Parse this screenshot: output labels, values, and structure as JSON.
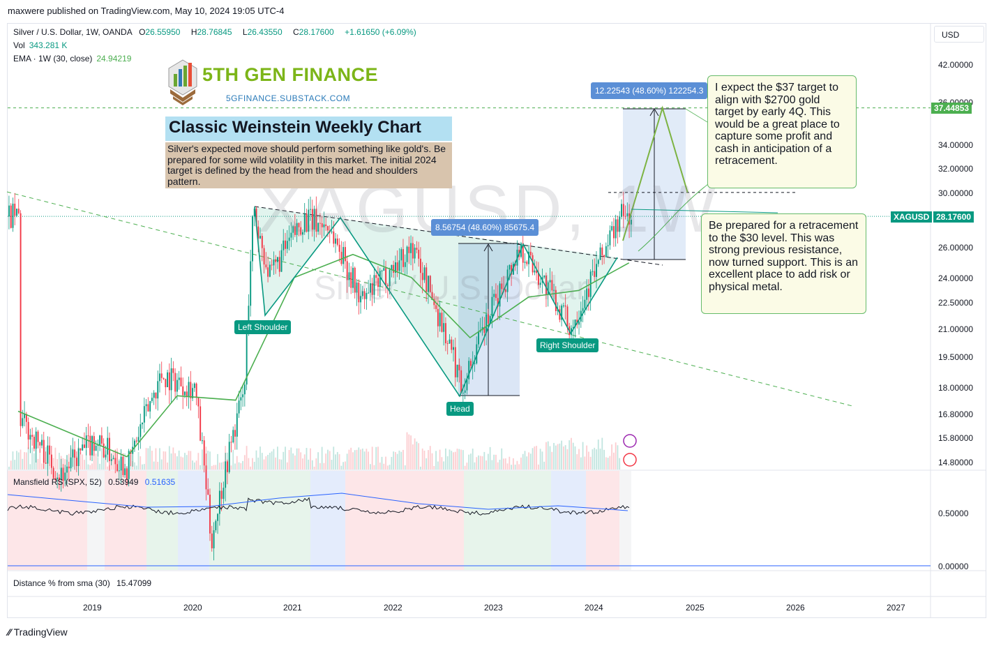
{
  "publish_line": "maxwere published on TradingView.com, May 10, 2024 19:05 UTC-4",
  "legend": {
    "symbol": "Silver / U.S. Dollar, 1W, OANDA",
    "o_label": "O",
    "o_value": "26.55950",
    "h_label": "H",
    "h_value": "28.76845",
    "l_label": "L",
    "l_value": "26.43550",
    "c_label": "C",
    "c_value": "28.17600",
    "change": "+1.61650 (+6.09%)",
    "vol_label": "Vol",
    "vol_value": "343.281 K",
    "ema_label": "EMA · 1W (30, close)",
    "ema_value": "24.94219"
  },
  "currency_button": "USD",
  "watermark": {
    "main": "XAGUSD, 1W",
    "sub": "Silver / U.S. Dollar"
  },
  "logo": {
    "title": "5TH GEN FINANCE",
    "subtitle": "5GFINANCE.SUBSTACK.COM"
  },
  "title_box": "Classic Weinstein Weekly Chart",
  "description_box": "Silver's expected move should perform something like gold's.  Be prepared for some wild volatility in this market.  The initial 2024 target is defined by the head from the head and shoulders pattern.",
  "note_top": "I expect the $37 target to align with $2700 gold target by early 4Q.  This would be a great place to capture some profit and cash in anticipation of a retracement.",
  "note_bottom": "Be prepared for a retracement to the $30 level.  This was strong previous resistance, now turned support.  This is an excellent place to add risk or physical metal.",
  "measure_1": "8.56754 (48.60%) 85675.4",
  "measure_2": "12.22543 (48.60%) 122254.3",
  "labels": {
    "left_shoulder": "Left Shoulder",
    "head": "Head",
    "right_shoulder": "Right Shoulder"
  },
  "price_tag_symbol": "XAGUSD",
  "price_tag_value": "28.17600",
  "target_tag_value": "37.44853",
  "price_axis": [
    "42.00000",
    "36.00000",
    "34.00000",
    "32.00000",
    "30.00000",
    "26.00000",
    "24.00000",
    "22.50000",
    "21.00000",
    "19.50000",
    "18.00000",
    "16.80000",
    "15.80000",
    "14.80000"
  ],
  "indicator": {
    "mansfield_label": "Mansfield RS (SPX, 52)",
    "mansfield_value": "0.53949",
    "mansfield_ma": "0.51635",
    "axis": [
      "0.50000",
      "0.00000"
    ],
    "distance_label": "Distance % from sma (30)",
    "distance_value": "15.47099"
  },
  "time_axis": [
    "2019",
    "2020",
    "2021",
    "2022",
    "2023",
    "2024",
    "2025",
    "2026",
    "2027"
  ],
  "footer": "TradingView",
  "colors": {
    "up": "#089981",
    "down": "#f23645",
    "ema": "#4caf50",
    "rs": "#131722",
    "rs_ma": "#2962ff",
    "accent": "#2962ff",
    "measure": "#5b8fd6",
    "pattern_fill": "#d4efe7"
  },
  "chart_data": {
    "type": "candlestick",
    "title": "Classic Weinstein Weekly Chart",
    "symbol": "XAGUSD",
    "timeframe": "1W",
    "x_range": [
      "2018-04",
      "2027-06"
    ],
    "y_scale": "log",
    "ylim": [
      14.2,
      44.0
    ],
    "ohlc_last": {
      "open": 26.5595,
      "high": 28.76845,
      "low": 26.4355,
      "close": 28.176
    },
    "ema30_last": 24.94219,
    "price_path": [
      {
        "date": "2018-04",
        "close": 16.6
      },
      {
        "date": "2018-09",
        "close": 14.3
      },
      {
        "date": "2019-01",
        "close": 15.7
      },
      {
        "date": "2019-05",
        "close": 14.6
      },
      {
        "date": "2019-09",
        "close": 18.6
      },
      {
        "date": "2020-01",
        "close": 18.0
      },
      {
        "date": "2020-03",
        "close": 12.0
      },
      {
        "date": "2020-07",
        "close": 18.0
      },
      {
        "date": "2020-08",
        "close": 28.5
      },
      {
        "date": "2020-10",
        "close": 24.0
      },
      {
        "date": "2021-02",
        "close": 28.0
      },
      {
        "date": "2021-05",
        "close": 27.5
      },
      {
        "date": "2021-09",
        "close": 22.5
      },
      {
        "date": "2022-03",
        "close": 26.0
      },
      {
        "date": "2022-09",
        "close": 18.0
      },
      {
        "date": "2023-04",
        "close": 26.0
      },
      {
        "date": "2023-10",
        "close": 21.0
      },
      {
        "date": "2024-04",
        "close": 28.2
      },
      {
        "date": "2024-05",
        "close": 28.176
      }
    ],
    "ema_path": [
      {
        "date": "2018-04",
        "value": 16.9
      },
      {
        "date": "2019-05",
        "value": 15.0
      },
      {
        "date": "2019-11",
        "value": 17.6
      },
      {
        "date": "2020-06",
        "value": 17.4
      },
      {
        "date": "2021-01",
        "value": 24.0
      },
      {
        "date": "2021-08",
        "value": 25.5
      },
      {
        "date": "2022-03",
        "value": 24.0
      },
      {
        "date": "2022-10",
        "value": 20.5
      },
      {
        "date": "2023-05",
        "value": 22.8
      },
      {
        "date": "2023-11",
        "value": 23.2
      },
      {
        "date": "2024-05",
        "value": 24.94
      }
    ],
    "projection_path": [
      {
        "date": "2024-05",
        "value": 28.176
      },
      {
        "date": "2024-09",
        "value": 37.45
      },
      {
        "date": "2024-12",
        "value": 30.0
      }
    ],
    "annotations": [
      {
        "label": "Left Shoulder",
        "date": "2020-09",
        "price": 22.0
      },
      {
        "label": "Head",
        "date": "2022-09",
        "price": 17.5
      },
      {
        "label": "Right Shoulder",
        "date": "2023-10",
        "price": 20.7
      }
    ],
    "levels": [
      37.44853,
      30.0,
      28.176
    ],
    "measures": [
      {
        "from": 17.63,
        "to": 26.2,
        "text": "8.56754 (48.60%) 85675.4"
      },
      {
        "from": 25.16,
        "to": 37.45,
        "text": "12.22543 (48.60%) 122254.3"
      }
    ],
    "mansfield_rs": {
      "value": 0.53949,
      "ma": 0.51635,
      "ylim": [
        0.0,
        0.75
      ]
    },
    "distance_pct_from_sma30": 15.47099
  }
}
